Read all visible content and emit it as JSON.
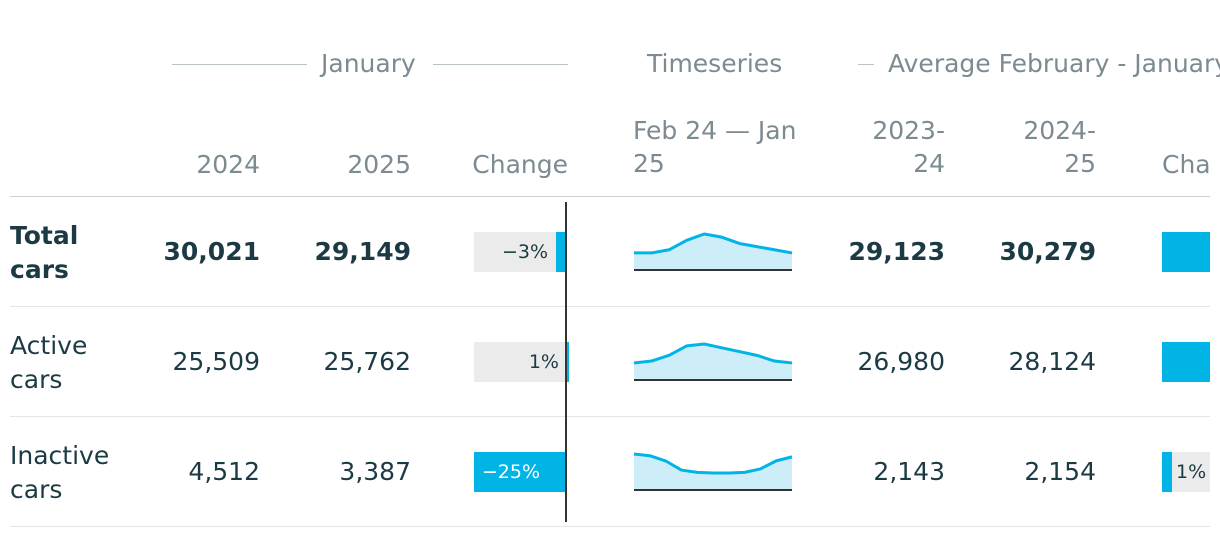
{
  "header": {
    "group_january": "January",
    "group_timeseries": "Timeseries",
    "group_average": "Average February - January",
    "col_2024": "2024",
    "col_2025": "2025",
    "col_change": "Change",
    "col_range": "Feb 24 — Jan 25",
    "col_2023_24": "2023-24",
    "col_2024_25": "2024-25",
    "col_change_avg": "Change"
  },
  "colors": {
    "accent": "#00b4e6",
    "area_fill": "#cdeef8",
    "bar_bg": "#ebebeb",
    "text": "#1b3a44",
    "muted": "#7b8b91"
  },
  "chart_data": {
    "type": "table",
    "rows": [
      {
        "label": "Total cars",
        "bold": true,
        "jan_2024": "30,021",
        "jan_2025": "29,149",
        "change_label": "−3%",
        "change_pct": -3,
        "spark": [
          28.9,
          28.9,
          29.0,
          29.3,
          29.5,
          29.4,
          29.2,
          29.1,
          29.0,
          28.9
        ],
        "avg_2023_24": "29,123",
        "avg_2024_25": "30,279",
        "avg_change_pct": 4
      },
      {
        "label": "Active cars",
        "bold": false,
        "jan_2024": "25,509",
        "jan_2025": "25,762",
        "change_label": "1%",
        "change_pct": 1,
        "spark": [
          25.0,
          25.1,
          25.4,
          25.9,
          26.0,
          25.8,
          25.6,
          25.4,
          25.1,
          25.0
        ],
        "avg_2023_24": "26,980",
        "avg_2024_25": "28,124",
        "avg_change_pct": 4
      },
      {
        "label": "Inactive cars",
        "bold": false,
        "jan_2024": "4,512",
        "jan_2025": "3,387",
        "change_label": "−25%",
        "change_pct": -25,
        "spark": [
          5.8,
          5.5,
          4.6,
          3.0,
          2.6,
          2.5,
          2.5,
          2.6,
          3.2,
          4.6,
          5.3
        ],
        "avg_2023_24": "2,143",
        "avg_2024_25": "2,154",
        "avg_change_label": "1%",
        "avg_change_pct": 1
      }
    ]
  }
}
